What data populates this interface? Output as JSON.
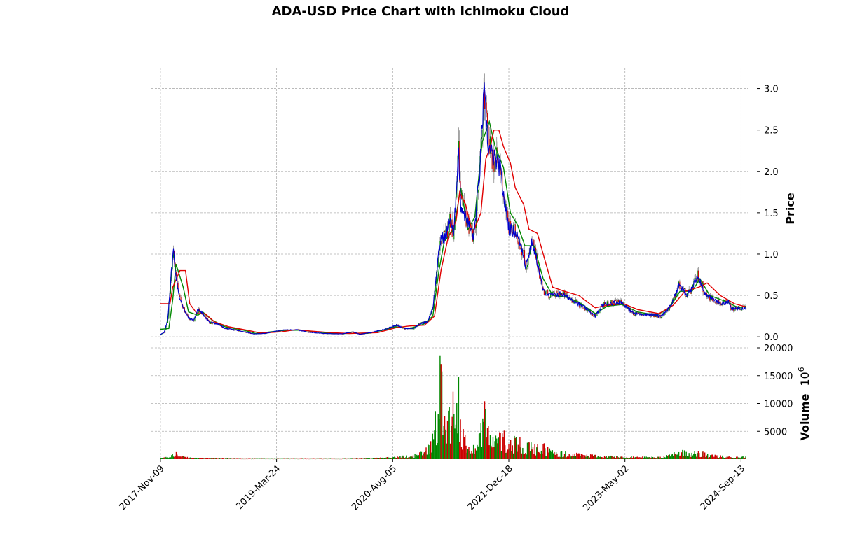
{
  "chart_data": {
    "type": "candlestick",
    "title": "ADA-USD Price Chart with Ichimoku Cloud",
    "x_tick_labels": [
      "2017-Nov-09",
      "2019-Mar-24",
      "2020-Aug-05",
      "2021-Dec-18",
      "2023-May-02",
      "2024-Sep-13"
    ],
    "x_range": [
      "2017-10-01",
      "2024-10-15"
    ],
    "grid": true,
    "price_panel": {
      "ylabel": "Price",
      "ylim": [
        -0.1,
        3.25
      ],
      "y_ticks": [
        0.0,
        0.5,
        1.0,
        1.5,
        2.0,
        2.5,
        3.0
      ],
      "y_tick_labels": [
        "0.0",
        "0.5",
        "1.0",
        "1.5",
        "2.0",
        "2.5",
        "3.0"
      ],
      "close_series": {
        "name": "",
        "color": "#0000cc",
        "points": [
          [
            "2017-11-09",
            0.03
          ],
          [
            "2017-11-25",
            0.05
          ],
          [
            "2017-12-10",
            0.2
          ],
          [
            "2017-12-25",
            0.75
          ],
          [
            "2018-01-04",
            1.05
          ],
          [
            "2018-01-15",
            0.72
          ],
          [
            "2018-02-01",
            0.45
          ],
          [
            "2018-02-20",
            0.33
          ],
          [
            "2018-03-10",
            0.22
          ],
          [
            "2018-04-01",
            0.2
          ],
          [
            "2018-04-20",
            0.33
          ],
          [
            "2018-05-10",
            0.28
          ],
          [
            "2018-06-10",
            0.17
          ],
          [
            "2018-07-10",
            0.16
          ],
          [
            "2018-08-15",
            0.1
          ],
          [
            "2018-10-01",
            0.08
          ],
          [
            "2018-11-20",
            0.05
          ],
          [
            "2018-12-15",
            0.035
          ],
          [
            "2019-02-01",
            0.04
          ],
          [
            "2019-04-15",
            0.08
          ],
          [
            "2019-06-20",
            0.085
          ],
          [
            "2019-08-10",
            0.055
          ],
          [
            "2019-10-15",
            0.04
          ],
          [
            "2020-01-01",
            0.035
          ],
          [
            "2020-02-15",
            0.06
          ],
          [
            "2020-03-15",
            0.03
          ],
          [
            "2020-05-01",
            0.05
          ],
          [
            "2020-07-01",
            0.09
          ],
          [
            "2020-08-20",
            0.14
          ],
          [
            "2020-09-25",
            0.1
          ],
          [
            "2020-11-01",
            0.1
          ],
          [
            "2020-12-01",
            0.16
          ],
          [
            "2021-01-01",
            0.18
          ],
          [
            "2021-01-25",
            0.35
          ],
          [
            "2021-02-15",
            0.9
          ],
          [
            "2021-03-01",
            1.2
          ],
          [
            "2021-03-20",
            1.2
          ],
          [
            "2021-04-10",
            1.45
          ],
          [
            "2021-04-25",
            1.2
          ],
          [
            "2021-05-15",
            2.3
          ],
          [
            "2021-05-25",
            1.6
          ],
          [
            "2021-06-15",
            1.45
          ],
          [
            "2021-07-20",
            1.2
          ],
          [
            "2021-08-15",
            2.0
          ],
          [
            "2021-09-02",
            2.95
          ],
          [
            "2021-09-20",
            2.3
          ],
          [
            "2021-10-15",
            2.15
          ],
          [
            "2021-11-10",
            2.05
          ],
          [
            "2021-12-01",
            1.6
          ],
          [
            "2021-12-20",
            1.3
          ],
          [
            "2022-01-20",
            1.25
          ],
          [
            "2022-02-15",
            1.05
          ],
          [
            "2022-03-01",
            0.85
          ],
          [
            "2022-03-28",
            1.15
          ],
          [
            "2022-04-20",
            0.9
          ],
          [
            "2022-05-15",
            0.55
          ],
          [
            "2022-06-15",
            0.5
          ],
          [
            "2022-08-01",
            0.52
          ],
          [
            "2022-09-15",
            0.45
          ],
          [
            "2022-11-10",
            0.35
          ],
          [
            "2022-12-25",
            0.25
          ],
          [
            "2023-01-25",
            0.38
          ],
          [
            "2023-02-15",
            0.4
          ],
          [
            "2023-04-15",
            0.42
          ],
          [
            "2023-06-10",
            0.28
          ],
          [
            "2023-08-15",
            0.27
          ],
          [
            "2023-10-01",
            0.25
          ],
          [
            "2023-10-25",
            0.3
          ],
          [
            "2023-11-20",
            0.4
          ],
          [
            "2023-12-20",
            0.62
          ],
          [
            "2024-01-25",
            0.5
          ],
          [
            "2024-02-15",
            0.58
          ],
          [
            "2024-03-10",
            0.75
          ],
          [
            "2024-04-15",
            0.5
          ],
          [
            "2024-05-20",
            0.45
          ],
          [
            "2024-06-20",
            0.4
          ],
          [
            "2024-07-20",
            0.42
          ],
          [
            "2024-08-05",
            0.33
          ],
          [
            "2024-09-01",
            0.35
          ],
          [
            "2024-10-05",
            0.35
          ]
        ]
      },
      "overlays": [
        {
          "name": "",
          "color": "#008800",
          "points": [
            [
              "2017-11-09",
              0.09
            ],
            [
              "2017-12-15",
              0.1
            ],
            [
              "2018-01-01",
              0.45
            ],
            [
              "2018-01-15",
              0.88
            ],
            [
              "2018-02-15",
              0.6
            ],
            [
              "2018-03-10",
              0.3
            ],
            [
              "2018-04-20",
              0.26
            ],
            [
              "2018-05-10",
              0.3
            ],
            [
              "2018-06-20",
              0.2
            ],
            [
              "2018-08-15",
              0.12
            ],
            [
              "2018-11-01",
              0.08
            ],
            [
              "2018-12-25",
              0.04
            ],
            [
              "2019-04-15",
              0.075
            ],
            [
              "2019-07-01",
              0.08
            ],
            [
              "2019-10-15",
              0.05
            ],
            [
              "2020-01-01",
              0.04
            ],
            [
              "2020-05-01",
              0.045
            ],
            [
              "2020-08-20",
              0.12
            ],
            [
              "2020-10-15",
              0.1
            ],
            [
              "2020-12-15",
              0.15
            ],
            [
              "2021-01-25",
              0.25
            ],
            [
              "2021-02-20",
              0.8
            ],
            [
              "2021-03-15",
              1.15
            ],
            [
              "2021-04-25",
              1.3
            ],
            [
              "2021-05-25",
              1.8
            ],
            [
              "2021-06-25",
              1.3
            ],
            [
              "2021-07-25",
              1.45
            ],
            [
              "2021-08-25",
              2.35
            ],
            [
              "2021-09-25",
              2.6
            ],
            [
              "2021-10-20",
              2.3
            ],
            [
              "2021-11-25",
              2.05
            ],
            [
              "2021-12-25",
              1.5
            ],
            [
              "2022-01-25",
              1.35
            ],
            [
              "2022-02-25",
              1.1
            ],
            [
              "2022-04-05",
              1.1
            ],
            [
              "2022-05-15",
              0.7
            ],
            [
              "2022-06-25",
              0.5
            ],
            [
              "2022-08-20",
              0.48
            ],
            [
              "2022-10-15",
              0.42
            ],
            [
              "2022-12-25",
              0.28
            ],
            [
              "2023-02-15",
              0.37
            ],
            [
              "2023-04-20",
              0.39
            ],
            [
              "2023-06-25",
              0.3
            ],
            [
              "2023-09-15",
              0.26
            ],
            [
              "2023-11-10",
              0.35
            ],
            [
              "2023-12-25",
              0.55
            ],
            [
              "2024-02-15",
              0.55
            ],
            [
              "2024-03-20",
              0.7
            ],
            [
              "2024-05-01",
              0.5
            ],
            [
              "2024-07-15",
              0.42
            ],
            [
              "2024-09-01",
              0.35
            ],
            [
              "2024-10-05",
              0.37
            ]
          ]
        },
        {
          "name": "",
          "color": "#e00000",
          "points": [
            [
              "2017-11-09",
              0.4
            ],
            [
              "2017-12-20",
              0.4
            ],
            [
              "2018-01-01",
              0.6
            ],
            [
              "2018-02-01",
              0.8
            ],
            [
              "2018-02-25",
              0.8
            ],
            [
              "2018-03-15",
              0.4
            ],
            [
              "2018-04-15",
              0.28
            ],
            [
              "2018-05-20",
              0.28
            ],
            [
              "2018-06-30",
              0.18
            ],
            [
              "2018-09-01",
              0.12
            ],
            [
              "2018-11-15",
              0.08
            ],
            [
              "2019-01-15",
              0.045
            ],
            [
              "2019-04-15",
              0.06
            ],
            [
              "2019-06-15",
              0.085
            ],
            [
              "2019-08-15",
              0.07
            ],
            [
              "2019-11-15",
              0.05
            ],
            [
              "2020-02-01",
              0.04
            ],
            [
              "2020-06-01",
              0.05
            ],
            [
              "2020-08-20",
              0.11
            ],
            [
              "2020-10-15",
              0.13
            ],
            [
              "2020-12-20",
              0.14
            ],
            [
              "2021-02-01",
              0.25
            ],
            [
              "2021-03-01",
              0.8
            ],
            [
              "2021-04-01",
              1.2
            ],
            [
              "2021-05-05",
              1.4
            ],
            [
              "2021-05-20",
              1.75
            ],
            [
              "2021-06-15",
              1.6
            ],
            [
              "2021-07-15",
              1.25
            ],
            [
              "2021-08-20",
              1.5
            ],
            [
              "2021-09-10",
              2.15
            ],
            [
              "2021-09-30",
              2.3
            ],
            [
              "2021-10-15",
              2.5
            ],
            [
              "2021-11-05",
              2.5
            ],
            [
              "2021-11-25",
              2.3
            ],
            [
              "2021-12-25",
              2.1
            ],
            [
              "2022-01-15",
              1.8
            ],
            [
              "2022-02-20",
              1.6
            ],
            [
              "2022-03-15",
              1.3
            ],
            [
              "2022-04-20",
              1.25
            ],
            [
              "2022-05-25",
              0.9
            ],
            [
              "2022-06-25",
              0.6
            ],
            [
              "2022-08-15",
              0.55
            ],
            [
              "2022-10-15",
              0.5
            ],
            [
              "2022-12-25",
              0.35
            ],
            [
              "2023-02-15",
              0.38
            ],
            [
              "2023-04-25",
              0.4
            ],
            [
              "2023-06-25",
              0.33
            ],
            [
              "2023-09-25",
              0.28
            ],
            [
              "2023-11-25",
              0.38
            ],
            [
              "2024-01-15",
              0.55
            ],
            [
              "2024-03-15",
              0.6
            ],
            [
              "2024-04-20",
              0.65
            ],
            [
              "2024-06-15",
              0.5
            ],
            [
              "2024-08-15",
              0.4
            ],
            [
              "2024-10-05",
              0.36
            ]
          ]
        }
      ],
      "candle_colors": {
        "up": "#008800",
        "down": "#cc0000",
        "shadow": "#666666"
      }
    },
    "volume_panel": {
      "ylabel": "Volume",
      "unit": "10^6",
      "unit_base": "10",
      "unit_exponent": "6",
      "ylim": [
        0,
        20000
      ],
      "y_ticks": [
        5000,
        10000,
        15000,
        20000
      ],
      "y_tick_labels": [
        "5000",
        "10000",
        "15000",
        "20000"
      ],
      "colors": {
        "up": "#008800",
        "down": "#cc0000"
      },
      "envelope": [
        [
          "2017-11-09",
          200
        ],
        [
          "2017-12-15",
          500
        ],
        [
          "2018-01-05",
          1800
        ],
        [
          "2018-02-01",
          600
        ],
        [
          "2018-03-15",
          300
        ],
        [
          "2018-05-15",
          200
        ],
        [
          "2018-08-01",
          120
        ],
        [
          "2019-01-01",
          60
        ],
        [
          "2019-06-01",
          60
        ],
        [
          "2020-01-01",
          60
        ],
        [
          "2020-05-01",
          150
        ],
        [
          "2020-08-15",
          500
        ],
        [
          "2020-11-01",
          800
        ],
        [
          "2020-12-15",
          1500
        ],
        [
          "2021-01-25",
          4500
        ],
        [
          "2021-02-15",
          12000
        ],
        [
          "2021-03-01",
          20000
        ],
        [
          "2021-03-20",
          9000
        ],
        [
          "2021-04-15",
          11000
        ],
        [
          "2021-05-15",
          16500
        ],
        [
          "2021-05-25",
          6000
        ],
        [
          "2021-06-25",
          3000
        ],
        [
          "2021-07-20",
          2500
        ],
        [
          "2021-08-15",
          6000
        ],
        [
          "2021-09-05",
          11500
        ],
        [
          "2021-09-25",
          5000
        ],
        [
          "2021-10-20",
          4000
        ],
        [
          "2021-11-20",
          5500
        ],
        [
          "2021-12-20",
          3500
        ],
        [
          "2022-01-20",
          4500
        ],
        [
          "2022-03-01",
          3000
        ],
        [
          "2022-04-15",
          2500
        ],
        [
          "2022-05-15",
          2800
        ],
        [
          "2022-07-01",
          1500
        ],
        [
          "2022-09-01",
          1200
        ],
        [
          "2022-11-10",
          1000
        ],
        [
          "2023-01-15",
          700
        ],
        [
          "2023-04-15",
          600
        ],
        [
          "2023-07-01",
          450
        ],
        [
          "2023-10-01",
          400
        ],
        [
          "2023-11-25",
          1000
        ],
        [
          "2023-12-25",
          2000
        ],
        [
          "2024-02-15",
          1200
        ],
        [
          "2024-03-10",
          1600
        ],
        [
          "2024-05-01",
          800
        ],
        [
          "2024-07-01",
          600
        ],
        [
          "2024-09-01",
          600
        ],
        [
          "2024-10-05",
          500
        ]
      ]
    }
  }
}
